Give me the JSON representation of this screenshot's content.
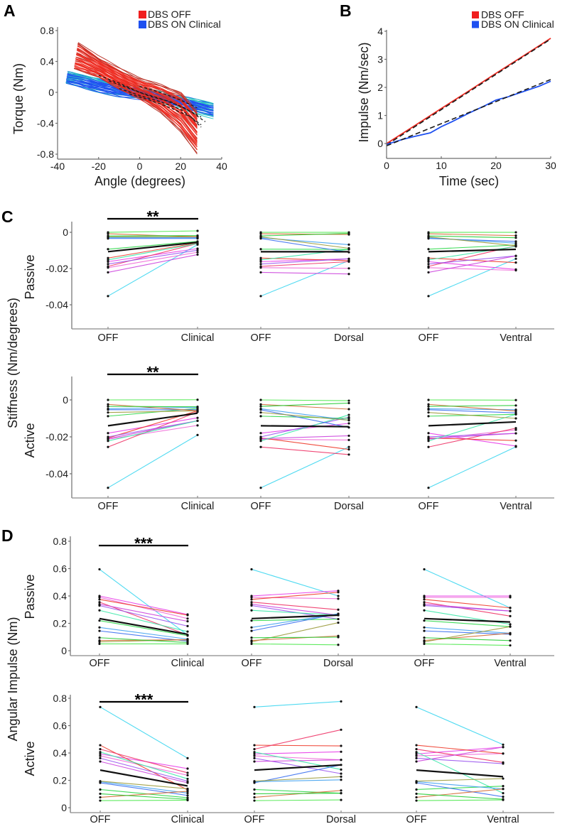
{
  "panel_labels": [
    "A",
    "B",
    "C",
    "D"
  ],
  "chart_data": [
    {
      "panel": "A",
      "type": "line",
      "title": "",
      "xlabel": "Angle (degrees)",
      "ylabel": "Torque (Nm)",
      "xlim": [
        -40,
        40
      ],
      "ylim": [
        -0.864,
        0.846
      ],
      "xticks": [
        -40,
        -20,
        0,
        20,
        40
      ],
      "xtick_labels": [
        "-40",
        "-20",
        "0",
        "20",
        "40"
      ],
      "yticks": [
        0.8,
        0.4,
        0,
        -0.4,
        -0.8
      ],
      "ytick_labels": [
        "0.8",
        "0.4",
        "0",
        "-0.4",
        "-0.8"
      ],
      "grid": false,
      "legend": {
        "position": "top-right",
        "entries": [
          {
            "label": "DBS OFF",
            "color": "#f01e1e"
          },
          {
            "label": "DBS ON Clinical",
            "color": "#1e50f0"
          }
        ]
      },
      "series": [
        {
          "name": "DBS ON Clinical",
          "color": "#1e50f0",
          "edge_color": "#26c6c0",
          "trials": 36,
          "upper": [
            [
              -35,
              0.27
            ],
            [
              -20,
              0.18
            ],
            [
              -10,
              0.1
            ],
            [
              0,
              0.05
            ],
            [
              10,
              0.0
            ],
            [
              20,
              -0.05
            ],
            [
              36,
              -0.15
            ]
          ],
          "lower": [
            [
              -36,
              0.12
            ],
            [
              -20,
              0.0
            ],
            [
              -10,
              -0.05
            ],
            [
              0,
              -0.08
            ],
            [
              10,
              -0.12
            ],
            [
              20,
              -0.2
            ],
            [
              36,
              -0.32
            ]
          ]
        },
        {
          "name": "DBS OFF",
          "color": "#ee2a20",
          "edge_color": "#b83226",
          "trials": 44,
          "upper": [
            [
              -30,
              0.65
            ],
            [
              -20,
              0.45
            ],
            [
              -10,
              0.3
            ],
            [
              0,
              0.17
            ],
            [
              10,
              0.1
            ],
            [
              20,
              0.0
            ],
            [
              28,
              -0.25
            ]
          ],
          "lower": [
            [
              -32,
              0.3
            ],
            [
              -20,
              0.2
            ],
            [
              -10,
              0.05
            ],
            [
              0,
              -0.08
            ],
            [
              10,
              -0.25
            ],
            [
              20,
              -0.5
            ],
            [
              28,
              -0.78
            ]
          ]
        },
        {
          "name": "fit",
          "color": "#1a1a1a",
          "style": "dashed",
          "curves": [
            [
              [
                -20,
                0.22
              ],
              [
                -10,
                0.12
              ],
              [
                0,
                0.0
              ],
              [
                10,
                -0.08
              ],
              [
                20,
                -0.18
              ],
              [
                30,
                -0.32
              ]
            ],
            [
              [
                -15,
                0.15
              ],
              [
                -5,
                0.05
              ],
              [
                5,
                -0.05
              ],
              [
                15,
                -0.12
              ],
              [
                25,
                -0.25
              ],
              [
                32,
                -0.38
              ]
            ],
            [
              [
                -10,
                0.05
              ],
              [
                0,
                -0.04
              ],
              [
                10,
                -0.12
              ],
              [
                20,
                -0.22
              ],
              [
                30,
                -0.42
              ]
            ],
            [
              [
                0,
                0.08
              ],
              [
                10,
                0.0
              ],
              [
                20,
                -0.1
              ],
              [
                28,
                -0.2
              ]
            ],
            [
              [
                -5,
                -0.02
              ],
              [
                5,
                -0.1
              ],
              [
                15,
                -0.2
              ],
              [
                25,
                -0.32
              ],
              [
                30,
                -0.45
              ]
            ]
          ]
        }
      ]
    },
    {
      "panel": "B",
      "type": "line",
      "title": "",
      "xlabel": "Time (sec)",
      "ylabel": "Impulse (Nm/sec)",
      "xlim": [
        0,
        30
      ],
      "ylim": [
        -0.53,
        4.05
      ],
      "xticks": [
        0,
        10,
        20,
        30
      ],
      "xtick_labels": [
        "0",
        "10",
        "20",
        "30"
      ],
      "yticks": [
        0,
        1,
        2,
        3,
        4
      ],
      "ytick_labels": [
        "0",
        "1",
        "2",
        "3",
        "4"
      ],
      "grid": false,
      "legend": {
        "position": "top-right",
        "entries": [
          {
            "label": "DBS OFF",
            "color": "#f01e1e"
          },
          {
            "label": "DBS ON Clinical",
            "color": "#1e50f0"
          }
        ]
      },
      "series": [
        {
          "name": "DBS OFF",
          "color": "#ee2a20",
          "style": "solid",
          "points": [
            [
              0,
              0.0
            ],
            [
              5,
              0.62
            ],
            [
              10,
              1.25
            ],
            [
              15,
              1.87
            ],
            [
              20,
              2.5
            ],
            [
              25,
              3.12
            ],
            [
              30,
              3.75
            ]
          ]
        },
        {
          "name": "DBS OFF fit",
          "color": "#1a1a1a",
          "style": "dashed",
          "points": [
            [
              0,
              -0.05
            ],
            [
              30,
              3.72
            ]
          ]
        },
        {
          "name": "DBS ON Clinical",
          "color": "#1e50f0",
          "style": "solid",
          "points": [
            [
              0,
              -0.03
            ],
            [
              3,
              0.15
            ],
            [
              5,
              0.25
            ],
            [
              8,
              0.38
            ],
            [
              10,
              0.6
            ],
            [
              12,
              0.78
            ],
            [
              15,
              1.08
            ],
            [
              18,
              1.35
            ],
            [
              20,
              1.55
            ],
            [
              22,
              1.65
            ],
            [
              25,
              1.85
            ],
            [
              28,
              2.05
            ],
            [
              30,
              2.22
            ]
          ]
        },
        {
          "name": "DBS ON Clinical fit",
          "color": "#1a1a1a",
          "style": "dashed",
          "points": [
            [
              0,
              -0.08
            ],
            [
              30,
              2.28
            ]
          ]
        }
      ]
    },
    {
      "panel": "C",
      "type": "line",
      "title": "",
      "ylabel": "Stiffness (Nm/degrees)",
      "subject_colors": [
        "#3cd6f0",
        "#e83be8",
        "#f06ad8",
        "#ee3a2a",
        "#ee3366",
        "#9a55ee",
        "#cc44dd",
        "#3ae8a8",
        "#111111",
        "#2ed84a",
        "#3a6ff0",
        "#3fa0ee",
        "#9a9a3a",
        "#d26a32",
        "#4ee84e",
        "#22cc33"
      ],
      "mean_index": 8,
      "rows": [
        {
          "label": "Passive",
          "ylim": [
            -0.0533,
            0.0059
          ],
          "yticks": [
            0,
            -0.02,
            -0.04
          ],
          "ytick_labels": [
            "0",
            "-0.02",
            "-0.04"
          ],
          "off": [
            -0.0352,
            -0.0162,
            -0.0195,
            -0.0142,
            -0.0188,
            -0.0175,
            -0.0221,
            -0.0152,
            -0.0107,
            -0.0093,
            -0.0034,
            -0.003,
            -0.0025,
            -0.0008,
            0.0,
            -0.002
          ],
          "comparisons": [
            {
              "categories": [
                "OFF",
                "Clinical"
              ],
              "significance": "**",
              "on": [
                -0.0068,
                -0.009,
                -0.011,
                -0.0058,
                -0.0062,
                -0.0099,
                -0.0123,
                -0.0062,
                -0.0055,
                -0.005,
                -0.0034,
                -0.003,
                -0.0025,
                -0.0025,
                0.0008,
                -0.0018
              ]
            },
            {
              "categories": [
                "OFF",
                "Dorsal"
              ],
              "significance": "",
              "on": [
                -0.0156,
                -0.0146,
                -0.0199,
                -0.0156,
                -0.0162,
                -0.0146,
                -0.023,
                -0.0094,
                -0.0107,
                -0.0094,
                -0.011,
                -0.0068,
                -0.0088,
                -0.0012,
                0.0,
                -0.0006
              ]
            },
            {
              "categories": [
                "OFF",
                "Ventral"
              ],
              "significance": "",
              "on": [
                -0.0146,
                -0.0205,
                -0.021,
                -0.0167,
                -0.0074,
                -0.013,
                -0.013,
                -0.0078,
                -0.0094,
                -0.007,
                -0.005,
                -0.006,
                -0.0074,
                -0.0018,
                0.0,
                -0.003
              ]
            }
          ]
        },
        {
          "label": "Active",
          "ylim": [
            -0.0531,
            0.0127
          ],
          "yticks": [
            0,
            -0.02,
            -0.04
          ],
          "ytick_labels": [
            "0",
            "-0.02",
            "-0.04"
          ],
          "off": [
            -0.0476,
            -0.018,
            -0.0213,
            -0.0206,
            -0.0255,
            -0.02,
            -0.021,
            -0.0222,
            -0.014,
            -0.0088,
            -0.0053,
            -0.0048,
            -0.0068,
            -0.0024,
            0.0,
            -0.0035
          ],
          "comparisons": [
            {
              "categories": [
                "OFF",
                "Clinical"
              ],
              "significance": "**",
              "on": [
                -0.019,
                -0.0097,
                -0.0138,
                -0.0059,
                -0.0065,
                -0.0113,
                -0.0113,
                -0.0113,
                -0.0072,
                -0.0046,
                -0.0053,
                -0.004,
                -0.0059,
                -0.0059,
                0.0001,
                -0.0037
              ]
            },
            {
              "categories": [
                "OFF",
                "Dorsal"
              ],
              "significance": "",
              "on": [
                -0.0255,
                -0.0127,
                -0.0217,
                -0.0268,
                -0.0296,
                -0.0094,
                -0.0194,
                -0.0081,
                -0.0145,
                -0.01,
                -0.0149,
                -0.011,
                -0.011,
                -0.005,
                -0.0004,
                -0.0017
              ]
            },
            {
              "categories": [
                "OFF",
                "Ventral"
              ],
              "significance": "",
              "on": [
                -0.0254,
                -0.025,
                -0.0162,
                -0.022,
                -0.0153,
                -0.0181,
                -0.0181,
                -0.0078,
                -0.0119,
                -0.0078,
                -0.007,
                -0.0053,
                -0.01,
                -0.006,
                -0.0001,
                -0.003
              ]
            }
          ]
        }
      ]
    },
    {
      "panel": "D",
      "type": "line",
      "title": "",
      "ylabel": "Angular Impulse (Nm)",
      "subject_colors": [
        "#3cd6f0",
        "#e83be8",
        "#f06ad8",
        "#ee3a2a",
        "#ee3366",
        "#9a55ee",
        "#cc44dd",
        "#3ae8a8",
        "#111111",
        "#2ed84a",
        "#3a6ff0",
        "#3fa0ee",
        "#9a9a3a",
        "#d26a32",
        "#4ee84e",
        "#22cc33"
      ],
      "mean_index": 8,
      "rows": [
        {
          "label": "Passive",
          "ylim": [
            -0.036,
            0.836
          ],
          "yticks": [
            0.8,
            0.6,
            0.4,
            0.2,
            0
          ],
          "ytick_labels": [
            "0.8",
            "0.6",
            "0.4",
            "0.2",
            "0"
          ],
          "off": [
            0.595,
            0.4,
            0.39,
            0.375,
            0.355,
            0.33,
            0.34,
            0.295,
            0.235,
            0.22,
            0.145,
            0.17,
            0.065,
            0.075,
            0.05,
            0.095
          ],
          "comparisons": [
            {
              "categories": [
                "OFF",
                "Clinical"
              ],
              "significance": "***",
              "on": [
                0.115,
                0.265,
                0.235,
                0.26,
                0.115,
                0.18,
                0.215,
                0.14,
                0.12,
                0.11,
                0.07,
                0.085,
                0.08,
                0.08,
                0.05,
                0.06
              ]
            },
            {
              "categories": [
                "OFF",
                "Dorsal"
              ],
              "significance": "",
              "on": [
                0.4,
                0.438,
                0.38,
                0.427,
                0.3,
                0.231,
                0.26,
                0.26,
                0.26,
                0.231,
                0.27,
                0.27,
                0.205,
                0.108,
                0.043,
                0.099
              ]
            },
            {
              "categories": [
                "OFF",
                "Ventral"
              ],
              "significance": "",
              "on": [
                0.313,
                0.4,
                0.39,
                0.313,
                0.253,
                0.29,
                0.29,
                0.193,
                0.21,
                0.176,
                0.12,
                0.128,
                0.176,
                0.128,
                0.039,
                0.074
              ]
            }
          ]
        },
        {
          "label": "Active",
          "ylim": [
            -0.036,
            0.826
          ],
          "yticks": [
            0.8,
            0.6,
            0.4,
            0.2,
            0
          ],
          "ytick_labels": [
            "0.8",
            "0.6",
            "0.4",
            "0.2",
            "0"
          ],
          "off": [
            0.736,
            0.393,
            0.379,
            0.457,
            0.428,
            0.362,
            0.338,
            0.407,
            0.275,
            0.133,
            0.182,
            0.19,
            0.194,
            0.076,
            0.052,
            0.102
          ],
          "comparisons": [
            {
              "categories": [
                "OFF",
                "Clinical"
              ],
              "significance": "***",
              "on": [
                0.362,
                0.286,
                0.237,
                0.13,
                0.255,
                0.194,
                0.182,
                0.211,
                0.159,
                0.073,
                0.09,
                0.107,
                0.139,
                0.12,
                0.055,
                0.061
              ]
            },
            {
              "categories": [
                "OFF",
                "Dorsal"
              ],
              "significance": "",
              "on": [
                0.777,
                0.409,
                0.35,
                0.452,
                0.57,
                0.249,
                0.35,
                0.279,
                0.313,
                0.106,
                0.313,
                0.204,
                0.227,
                0.126,
                0.057,
                0.106
              ]
            },
            {
              "categories": [
                "OFF",
                "Ventral"
              ],
              "significance": "",
              "on": [
                0.461,
                0.443,
                0.396,
                0.396,
                0.331,
                0.322,
                0.443,
                0.106,
                0.227,
                0.158,
                0.08,
                0.137,
                0.213,
                0.137,
                0.057,
                0.062
              ]
            }
          ]
        }
      ]
    }
  ]
}
